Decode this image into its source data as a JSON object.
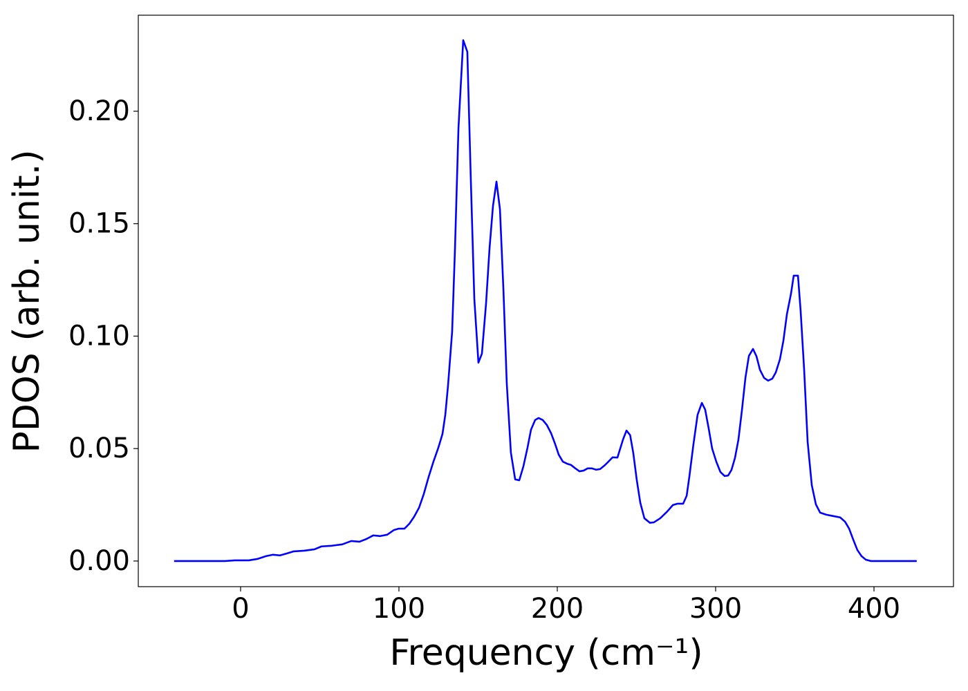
{
  "chart_data": {
    "type": "line",
    "xlabel": "Frequency (cm⁻¹)",
    "ylabel": "PDOS (arb. unit.)",
    "x": [
      -42,
      -10,
      -3.5,
      5.2,
      10.5,
      16.2,
      20.5,
      24.9,
      29.3,
      33.6,
      40.2,
      46.7,
      51.1,
      57.6,
      64.2,
      69.9,
      75.1,
      79.5,
      83.8,
      88.2,
      92.6,
      96.9,
      100,
      103.5,
      106.6,
      109.6,
      112.7,
      115.7,
      118.8,
      121.8,
      124.9,
      127.5,
      129.3,
      131,
      133.6,
      135.4,
      137.6,
      140.6,
      143.2,
      145.4,
      147.6,
      150.2,
      152.4,
      155,
      157.2,
      159.4,
      161.6,
      163.8,
      166,
      168.1,
      170.7,
      173.4,
      176,
      178.6,
      181.2,
      183.4,
      186,
      188.2,
      190.8,
      193.4,
      196.1,
      198.7,
      200.9,
      203.5,
      206.1,
      208.7,
      211.4,
      214,
      216.6,
      219.2,
      221.8,
      224.5,
      227.1,
      229.7,
      232.3,
      234.9,
      238,
      241.5,
      243.7,
      246,
      248,
      250.2,
      252.4,
      255,
      258.5,
      261,
      265,
      269.4,
      273,
      276,
      279.5,
      281.7,
      283.4,
      286,
      288.6,
      291.3,
      293.4,
      295.6,
      297.8,
      300.4,
      303,
      305.7,
      307.9,
      310,
      312.2,
      314.4,
      316.6,
      318.8,
      321,
      323.6,
      325.8,
      328,
      330.6,
      333.2,
      335.8,
      338,
      340.6,
      342.8,
      345,
      347.6,
      349.3,
      352,
      353.7,
      355.9,
      358.1,
      360.7,
      363.3,
      366,
      369.9,
      374.2,
      378.6,
      381.7,
      384.3,
      386.9,
      389.5,
      392.1,
      394.8,
      398,
      427
    ],
    "series": [
      {
        "color": "#0000ff",
        "values": [
          0,
          0,
          0.0003,
          0.0003,
          0.0009,
          0.0022,
          0.0028,
          0.0025,
          0.0034,
          0.0043,
          0.0046,
          0.0052,
          0.0065,
          0.0068,
          0.0074,
          0.0089,
          0.0086,
          0.0098,
          0.0114,
          0.0111,
          0.0117,
          0.0138,
          0.0144,
          0.0144,
          0.0166,
          0.0197,
          0.0237,
          0.0298,
          0.0375,
          0.0442,
          0.0504,
          0.0565,
          0.0651,
          0.078,
          0.102,
          0.1389,
          0.1926,
          0.2316,
          0.2264,
          0.1696,
          0.1167,
          0.0882,
          0.0922,
          0.1143,
          0.1389,
          0.1579,
          0.1687,
          0.1564,
          0.1204,
          0.079,
          0.0482,
          0.0363,
          0.0359,
          0.0421,
          0.0504,
          0.0584,
          0.0627,
          0.0636,
          0.0627,
          0.0605,
          0.0568,
          0.0519,
          0.0473,
          0.0442,
          0.0433,
          0.0427,
          0.0412,
          0.0399,
          0.0402,
          0.0412,
          0.0412,
          0.0406,
          0.0409,
          0.0424,
          0.0442,
          0.0461,
          0.046,
          0.054,
          0.058,
          0.056,
          0.048,
          0.036,
          0.026,
          0.019,
          0.017,
          0.0172,
          0.019,
          0.022,
          0.0249,
          0.0255,
          0.0255,
          0.029,
          0.0375,
          0.052,
          0.065,
          0.0703,
          0.0673,
          0.059,
          0.05,
          0.0442,
          0.0396,
          0.0378,
          0.038,
          0.0405,
          0.0458,
          0.054,
          0.067,
          0.0814,
          0.0912,
          0.0943,
          0.091,
          0.085,
          0.0814,
          0.0802,
          0.0811,
          0.0839,
          0.0897,
          0.098,
          0.1097,
          0.1189,
          0.1269,
          0.1269,
          0.111,
          0.085,
          0.053,
          0.0338,
          0.0252,
          0.0215,
          0.0206,
          0.02,
          0.0194,
          0.0175,
          0.0144,
          0.0095,
          0.0049,
          0.0022,
          0.0006,
          0,
          0
        ]
      }
    ],
    "xlim": [
      -64.6,
      450.2
    ],
    "ylim": [
      -0.0114,
      0.2427
    ],
    "xticks": [
      0,
      100,
      200,
      300,
      400
    ],
    "yticks": [
      {
        "value": 0,
        "label": "0.00"
      },
      {
        "value": 0.05,
        "label": "0.05"
      },
      {
        "value": 0.1,
        "label": "0.10"
      },
      {
        "value": 0.15,
        "label": "0.15"
      },
      {
        "value": 0.2,
        "label": "0.20"
      }
    ],
    "grid": false
  }
}
